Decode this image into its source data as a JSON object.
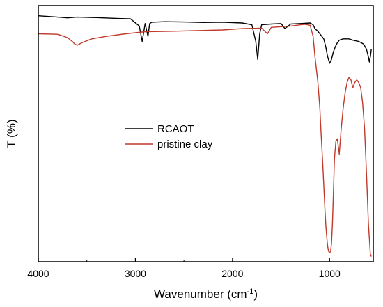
{
  "chart_data": {
    "type": "line",
    "xlabel": "Wavenumber (cm",
    "xlabel_sup": "-1",
    "xlabel_suffix": ")",
    "ylabel": "T (%)",
    "xlim": [
      4000,
      550
    ],
    "x_reversed": true,
    "ylim": [
      0,
      100
    ],
    "y_ticks_shown": false,
    "xticks": [
      4000,
      3000,
      2000,
      1000
    ],
    "legend": "center-left",
    "series": [
      {
        "name": "RCAOT",
        "color": "#000000",
        "x": [
          4000,
          3800,
          3700,
          3600,
          3400,
          3200,
          3050,
          2960,
          2930,
          2900,
          2870,
          2853,
          2830,
          2700,
          2500,
          2300,
          2100,
          1900,
          1800,
          1760,
          1740,
          1720,
          1700,
          1600,
          1500,
          1460,
          1400,
          1300,
          1200,
          1170,
          1150,
          1120,
          1100,
          1080,
          1060,
          1040,
          1020,
          1000,
          980,
          960,
          940,
          920,
          900,
          860,
          800,
          760,
          700,
          650,
          620,
          600,
          590,
          580,
          570
        ],
        "y": [
          96,
          95.5,
          95.2,
          95.5,
          95.3,
          95,
          94.8,
          92,
          86,
          93,
          88,
          93,
          93.5,
          93.7,
          93.6,
          93.4,
          93.5,
          93.2,
          92.5,
          86,
          79,
          89,
          92.5,
          92.8,
          93,
          91,
          92.8,
          93,
          93.2,
          92.5,
          91,
          90,
          89,
          88,
          87,
          84,
          80,
          77.5,
          79,
          82,
          84,
          85.5,
          86.5,
          87,
          87,
          86.5,
          86,
          85,
          83,
          80,
          78,
          80,
          83
        ]
      },
      {
        "name": "pristine clay",
        "color": "#c0392b",
        "x": [
          4000,
          3800,
          3700,
          3650,
          3625,
          3600,
          3550,
          3450,
          3300,
          3100,
          2900,
          2600,
          2300,
          2100,
          1900,
          1700,
          1640,
          1600,
          1400,
          1300,
          1250,
          1200,
          1170,
          1150,
          1120,
          1100,
          1090,
          1080,
          1070,
          1060,
          1050,
          1040,
          1030,
          1020,
          1010,
          1000,
          990,
          980,
          970,
          960,
          950,
          935,
          920,
          910,
          900,
          880,
          860,
          840,
          820,
          800,
          780,
          760,
          740,
          720,
          700,
          680,
          660,
          640,
          620,
          600,
          580,
          570
        ],
        "y": [
          89,
          88.8,
          87.5,
          86,
          85,
          84.5,
          85.5,
          87,
          88,
          89,
          89.8,
          90,
          90.3,
          90.5,
          91,
          91.2,
          89,
          91.5,
          92,
          92.5,
          92.7,
          92.3,
          88,
          80,
          70,
          60,
          52,
          45,
          38,
          30,
          22,
          15,
          10,
          6,
          4,
          3.5,
          4,
          7,
          15,
          27,
          40,
          47,
          48,
          45,
          42,
          52,
          60,
          66,
          70,
          72,
          71,
          68,
          70,
          71,
          70,
          68,
          62,
          52,
          35,
          15,
          3,
          2
        ]
      }
    ]
  }
}
